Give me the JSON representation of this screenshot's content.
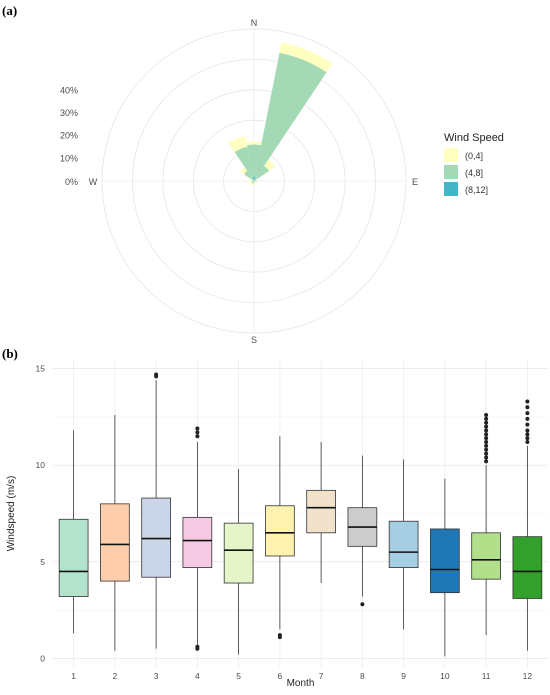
{
  "chart_data": [
    {
      "panel_label": "(a)",
      "type": "polar-stacked-bar",
      "directions": {
        "n": "N",
        "e": "E",
        "s": "S",
        "w": "W"
      },
      "radial_ticks": [
        {
          "label": "0%",
          "value": 0
        },
        {
          "label": "10%",
          "value": 10
        },
        {
          "label": "20%",
          "value": 20
        },
        {
          "label": "30%",
          "value": 30
        },
        {
          "label": "40%",
          "value": 40
        }
      ],
      "rmax": 50,
      "legend": {
        "title": "Wind Speed",
        "position": "right",
        "entries": [
          {
            "label": "(0,4]",
            "color": "#ffffc0"
          },
          {
            "label": "(4,8]",
            "color": "#a3dab5"
          },
          {
            "label": "(8,12]",
            "color": "#41b6c4"
          }
        ]
      },
      "sector_width_deg": 22.5,
      "sectors": [
        {
          "direction_deg": 0,
          "values": [
            1.0,
            10.5,
            1.5
          ]
        },
        {
          "direction_deg": 22.5,
          "values": [
            3.5,
            42.0,
            1.0
          ]
        },
        {
          "direction_deg": 45,
          "values": [
            2.5,
            6.0,
            0.0
          ]
        },
        {
          "direction_deg": 90,
          "values": [
            0.5,
            1.0,
            0.0
          ]
        },
        {
          "direction_deg": 135,
          "values": [
            0.5,
            0.5,
            0.0
          ]
        },
        {
          "direction_deg": 180,
          "values": [
            0.5,
            0.5,
            0.0
          ]
        },
        {
          "direction_deg": 202.5,
          "values": [
            0.5,
            1.0,
            0.0
          ]
        },
        {
          "direction_deg": 225,
          "values": [
            0.5,
            1.0,
            0.0
          ]
        },
        {
          "direction_deg": 270,
          "values": [
            1.0,
            1.0,
            0.0
          ]
        },
        {
          "direction_deg": 315,
          "values": [
            1.5,
            4.0,
            0.0
          ]
        },
        {
          "direction_deg": 337.5,
          "values": [
            3.5,
            11.5,
            0.0
          ]
        }
      ],
      "grid": true
    },
    {
      "panel_label": "(b)",
      "type": "box",
      "xlabel": "Month",
      "ylabel": "Windspeed (m/s)",
      "ylim": [
        -0.5,
        15.5
      ],
      "yticks": [
        0,
        5,
        10,
        15
      ],
      "grid": true,
      "categories": [
        "1",
        "2",
        "3",
        "4",
        "5",
        "6",
        "7",
        "8",
        "9",
        "10",
        "11",
        "12"
      ],
      "boxes": [
        {
          "month": "1",
          "min": 1.3,
          "q1": 3.2,
          "median": 4.5,
          "q3": 7.2,
          "max": 11.8,
          "outliers": [],
          "color": "#b3e2cd"
        },
        {
          "month": "2",
          "min": 0.4,
          "q1": 4.0,
          "median": 5.9,
          "q3": 8.0,
          "max": 12.6,
          "outliers": [],
          "color": "#fdcdac"
        },
        {
          "month": "3",
          "min": 0.5,
          "q1": 4.2,
          "median": 6.2,
          "q3": 8.3,
          "max": 14.4,
          "outliers": [
            14.6,
            14.7
          ],
          "color": "#cbd5e8"
        },
        {
          "month": "4",
          "min": 0.7,
          "q1": 4.7,
          "median": 6.1,
          "q3": 7.3,
          "max": 11.2,
          "outliers": [
            0.5,
            0.6,
            11.5,
            11.7,
            11.9
          ],
          "color": "#f4cae4"
        },
        {
          "month": "5",
          "min": 0.2,
          "q1": 3.9,
          "median": 5.6,
          "q3": 7.0,
          "max": 9.8,
          "outliers": [],
          "color": "#e6f5c9"
        },
        {
          "month": "6",
          "min": 1.5,
          "q1": 5.3,
          "median": 6.5,
          "q3": 7.9,
          "max": 11.5,
          "outliers": [
            1.1,
            1.2
          ],
          "color": "#fff2ae"
        },
        {
          "month": "7",
          "min": 3.9,
          "q1": 6.5,
          "median": 7.8,
          "q3": 8.7,
          "max": 11.2,
          "outliers": [],
          "color": "#f1e2cc"
        },
        {
          "month": "8",
          "min": 3.2,
          "q1": 5.8,
          "median": 6.8,
          "q3": 7.8,
          "max": 10.5,
          "outliers": [
            2.8
          ],
          "color": "#cccccc"
        },
        {
          "month": "9",
          "min": 1.5,
          "q1": 4.7,
          "median": 5.5,
          "q3": 7.1,
          "max": 10.3,
          "outliers": [],
          "color": "#a6cee3"
        },
        {
          "month": "10",
          "min": 0.1,
          "q1": 3.4,
          "median": 4.6,
          "q3": 6.7,
          "max": 9.3,
          "outliers": [],
          "color": "#1f78b4"
        },
        {
          "month": "11",
          "min": 1.2,
          "q1": 4.1,
          "median": 5.1,
          "q3": 6.5,
          "max": 10.0,
          "outliers": [
            10.2,
            10.4,
            10.6,
            10.8,
            11.0,
            11.2,
            11.4,
            11.6,
            11.8,
            12.0,
            12.2,
            12.4,
            12.6
          ],
          "color": "#b2df8a"
        },
        {
          "month": "12",
          "min": 0.4,
          "q1": 3.1,
          "median": 4.5,
          "q3": 6.3,
          "max": 11.0,
          "outliers": [
            11.2,
            11.4,
            11.6,
            11.8,
            12.1,
            12.4,
            12.7,
            13.0,
            13.3
          ],
          "color": "#33a02c"
        }
      ]
    }
  ]
}
